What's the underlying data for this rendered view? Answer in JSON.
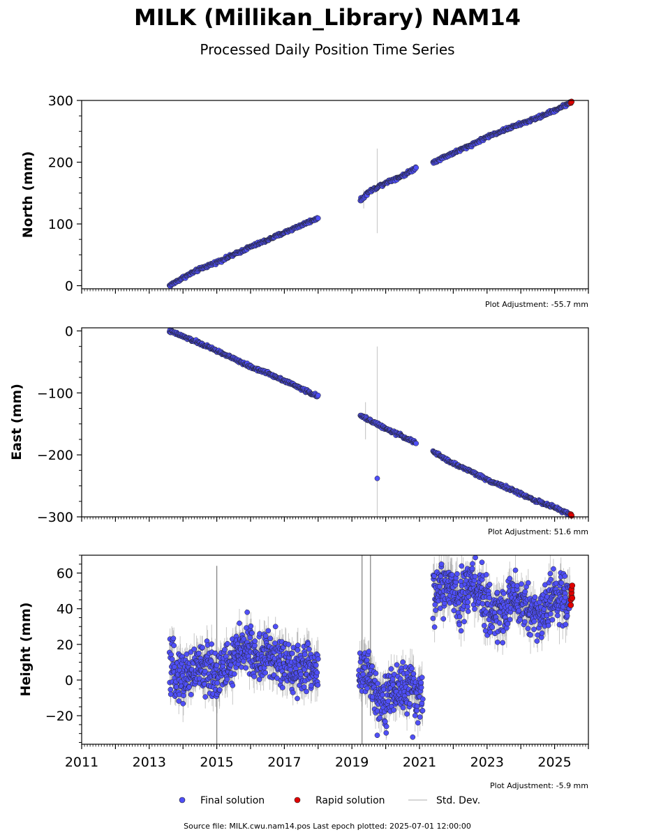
{
  "chart_data": {
    "type": "scatter",
    "title": "MILK (Millikan_Library) NAM14",
    "subtitle": "Processed Daily Position Time Series",
    "xlim": [
      2011.0,
      2026.0
    ],
    "x_ticks": [
      "2011",
      "2013",
      "2015",
      "2017",
      "2019",
      "2021",
      "2023",
      "2025"
    ],
    "panels": [
      {
        "ylabel": "North (mm)",
        "ylim": [
          -5,
          300
        ],
        "y_ticks": [
          "300",
          "200",
          "100",
          "0"
        ],
        "adjustment": "Plot Adjustment: -55.7 mm",
        "segments": [
          {
            "x": [
              2013.6,
              2014.0,
              2014.5,
              2015.0,
              2015.5,
              2016.0,
              2016.5,
              2017.0,
              2017.5,
              2018.0
            ],
            "y": [
              0,
              13,
              27,
              38,
              50,
              63,
              74,
              86,
              98,
              110
            ]
          },
          {
            "x": [
              2019.25,
              2019.5,
              2020.0,
              2020.5,
              2020.9
            ],
            "y": [
              138,
              152,
              167,
              178,
              191
            ]
          },
          {
            "x": [
              2021.4,
              2022.0,
              2022.5,
              2023.0,
              2023.5,
              2024.0,
              2024.5,
              2025.0,
              2025.45
            ],
            "y": [
              200,
              215,
              227,
              241,
              252,
              262,
              272,
              284,
              296
            ]
          }
        ],
        "outliers": [],
        "rapid": {
          "x": [
            2025.48,
            2025.5
          ],
          "y": [
            296,
            298
          ]
        },
        "tall_errors": [
          {
            "x": 2019.75,
            "y0": 85,
            "y1": 222
          },
          {
            "x": 2019.35,
            "y0": 125,
            "y1": 155
          }
        ]
      },
      {
        "ylabel": "East (mm)",
        "ylim": [
          -300,
          5
        ],
        "y_ticks": [
          "0",
          "−100",
          "−200",
          "−300"
        ],
        "adjustment": "Plot Adjustment: 51.6 mm",
        "segments": [
          {
            "x": [
              2013.6,
              2014.0,
              2014.5,
              2015.0,
              2015.5,
              2016.0,
              2016.5,
              2017.0,
              2017.5,
              2018.0
            ],
            "y": [
              0,
              -9,
              -20,
              -32,
              -45,
              -58,
              -68,
              -80,
              -93,
              -106
            ]
          },
          {
            "x": [
              2019.25,
              2019.5,
              2020.0,
              2020.5,
              2020.9
            ],
            "y": [
              -137,
              -143,
              -158,
              -170,
              -181
            ]
          },
          {
            "x": [
              2021.4,
              2022.0,
              2022.5,
              2023.0,
              2023.5,
              2024.0,
              2024.5,
              2025.0,
              2025.45
            ],
            "y": [
              -195,
              -214,
              -226,
              -240,
              -251,
              -263,
              -275,
              -285,
              -296
            ]
          }
        ],
        "outliers": [
          {
            "x": 2019.75,
            "y": -238
          }
        ],
        "rapid": {
          "x": [
            2025.48,
            2025.5
          ],
          "y": [
            -296,
            -298
          ]
        },
        "tall_errors": [
          {
            "x": 2019.75,
            "y0": -300,
            "y1": -25
          },
          {
            "x": 2019.4,
            "y0": -175,
            "y1": -115
          }
        ]
      },
      {
        "ylabel": "Height (mm)",
        "ylim": [
          -36,
          70
        ],
        "y_ticks": [
          "60",
          "40",
          "20",
          "0",
          "−20"
        ],
        "adjustment": "Plot Adjustment: -5.9 mm",
        "segments": [
          {
            "x": [
              2013.6,
              2014.0,
              2014.5,
              2015.0,
              2015.5,
              2015.8,
              2016.2,
              2016.6,
              2017.0,
              2017.5,
              2018.0
            ],
            "y": [
              6,
              2,
              7,
              4,
              10,
              20,
              12,
              14,
              8,
              7,
              6
            ]
          },
          {
            "x": [
              2019.2,
              2019.5,
              2019.8,
              2020.0,
              2020.3,
              2020.6,
              2020.9,
              2021.1
            ],
            "y": [
              6,
              2,
              -8,
              -12,
              -5,
              -4,
              -8,
              -11
            ]
          },
          {
            "x": [
              2021.4,
              2021.8,
              2022.2,
              2022.6,
              2023.0,
              2023.4,
              2023.8,
              2024.2,
              2024.6,
              2025.0,
              2025.45
            ],
            "y": [
              48,
              52,
              47,
              55,
              40,
              37,
              47,
              40,
              36,
              48,
              44
            ]
          }
        ],
        "outliers": [
          {
            "x": 2015.9,
            "y": 38
          },
          {
            "x": 2019.75,
            "y": -31
          },
          {
            "x": 2020.8,
            "y": -32
          },
          {
            "x": 2021.65,
            "y": 65
          },
          {
            "x": 2022.85,
            "y": 66
          }
        ],
        "rapid": {
          "x": [
            2025.48,
            2025.48,
            2025.5,
            2025.5,
            2025.5,
            2025.52,
            2025.52
          ],
          "y": [
            42,
            45,
            47,
            49,
            51,
            53,
            46
          ]
        },
        "tall_errors": [
          {
            "x": 2015.0,
            "y0": -36,
            "y1": 64
          },
          {
            "x": 2019.3,
            "y0": -36,
            "y1": 70
          },
          {
            "x": 2019.55,
            "y0": -20,
            "y1": 70
          }
        ]
      }
    ],
    "legend": {
      "placement": "bottom-center",
      "items": [
        "Final solution",
        "Rapid solution",
        "Std. Dev."
      ]
    },
    "source": "Source file: MILK.cwu.nam14.pos  Last epoch plotted: 2025-07-01 12:00:00",
    "colors": {
      "final": "#4f4ff7",
      "rapid": "#e00000",
      "error": "#b8b8b8",
      "outline": "#222222"
    }
  }
}
